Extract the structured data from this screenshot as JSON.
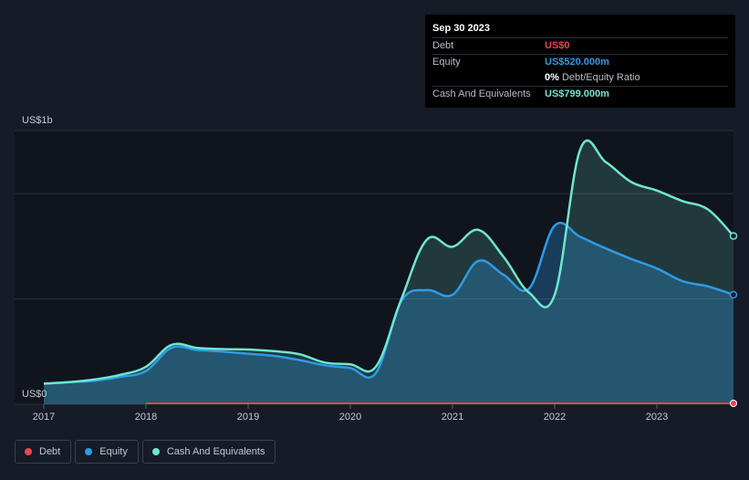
{
  "tooltip": {
    "date": "Sep 30 2023",
    "debt_label": "Debt",
    "debt_value": "US$0",
    "equity_label": "Equity",
    "equity_value": "US$520.000m",
    "ratio_value": "0%",
    "ratio_label": "Debt/Equity Ratio",
    "cash_label": "Cash And Equivalents",
    "cash_value": "US$799.000m"
  },
  "legend": [
    {
      "label": "Debt",
      "color": "#e8474f"
    },
    {
      "label": "Equity",
      "color": "#2e9be8"
    },
    {
      "label": "Cash And Equivalents",
      "color": "#6ee6cf"
    }
  ],
  "colors": {
    "debt": "#e8474f",
    "equity": "#2e9be8",
    "cash": "#6ee6cf",
    "highlight": "#10141d",
    "grid": "#2c323d"
  },
  "chart_data": {
    "type": "area",
    "title": "",
    "ylabel_top": "US$1b",
    "ylabel_bottom": "US$0",
    "ylim": [
      0,
      1300
    ],
    "gridlines": [
      0,
      500,
      1000,
      1300
    ],
    "xlim": [
      2017.0,
      2023.75
    ],
    "xticks": [
      2017,
      2018,
      2019,
      2020,
      2021,
      2022,
      2023
    ],
    "xtick_labels": [
      "2017",
      "2018",
      "2019",
      "2020",
      "2021",
      "2022",
      "2023"
    ],
    "highlight_from": 2017.0,
    "series": [
      {
        "name": "Cash And Equivalents",
        "points": [
          [
            2017.0,
            98
          ],
          [
            2017.25,
            105
          ],
          [
            2017.5,
            118
          ],
          [
            2017.75,
            140
          ],
          [
            2018.0,
            178
          ],
          [
            2018.25,
            282
          ],
          [
            2018.5,
            268
          ],
          [
            2018.75,
            262
          ],
          [
            2019.0,
            260
          ],
          [
            2019.25,
            252
          ],
          [
            2019.5,
            238
          ],
          [
            2019.75,
            198
          ],
          [
            2020.0,
            190
          ],
          [
            2020.25,
            178
          ],
          [
            2020.5,
            500
          ],
          [
            2020.75,
            782
          ],
          [
            2021.0,
            748
          ],
          [
            2021.25,
            828
          ],
          [
            2021.5,
            700
          ],
          [
            2021.75,
            530
          ],
          [
            2022.0,
            520
          ],
          [
            2022.25,
            1210
          ],
          [
            2022.5,
            1150
          ],
          [
            2022.75,
            1055
          ],
          [
            2023.0,
            1015
          ],
          [
            2023.25,
            965
          ],
          [
            2023.5,
            925
          ],
          [
            2023.75,
            799
          ]
        ]
      },
      {
        "name": "Equity",
        "points": [
          [
            2017.0,
            98
          ],
          [
            2017.25,
            105
          ],
          [
            2017.5,
            112
          ],
          [
            2017.75,
            130
          ],
          [
            2018.0,
            158
          ],
          [
            2018.25,
            268
          ],
          [
            2018.5,
            258
          ],
          [
            2018.75,
            250
          ],
          [
            2019.0,
            240
          ],
          [
            2019.25,
            230
          ],
          [
            2019.5,
            210
          ],
          [
            2019.75,
            185
          ],
          [
            2020.0,
            172
          ],
          [
            2020.25,
            148
          ],
          [
            2020.5,
            490
          ],
          [
            2020.75,
            542
          ],
          [
            2021.0,
            520
          ],
          [
            2021.25,
            680
          ],
          [
            2021.5,
            615
          ],
          [
            2021.75,
            550
          ],
          [
            2022.0,
            848
          ],
          [
            2022.25,
            795
          ],
          [
            2022.5,
            740
          ],
          [
            2022.75,
            690
          ],
          [
            2023.0,
            645
          ],
          [
            2023.25,
            585
          ],
          [
            2023.5,
            560
          ],
          [
            2023.75,
            520
          ]
        ]
      },
      {
        "name": "Debt",
        "points": [
          [
            2018.0,
            0
          ],
          [
            2018.5,
            0
          ],
          [
            2019.0,
            0
          ],
          [
            2019.5,
            0
          ],
          [
            2020.0,
            0
          ],
          [
            2020.5,
            0
          ],
          [
            2021.0,
            0
          ],
          [
            2021.5,
            0
          ],
          [
            2022.0,
            0
          ],
          [
            2022.5,
            0
          ],
          [
            2023.0,
            0
          ],
          [
            2023.75,
            0
          ]
        ]
      }
    ]
  }
}
